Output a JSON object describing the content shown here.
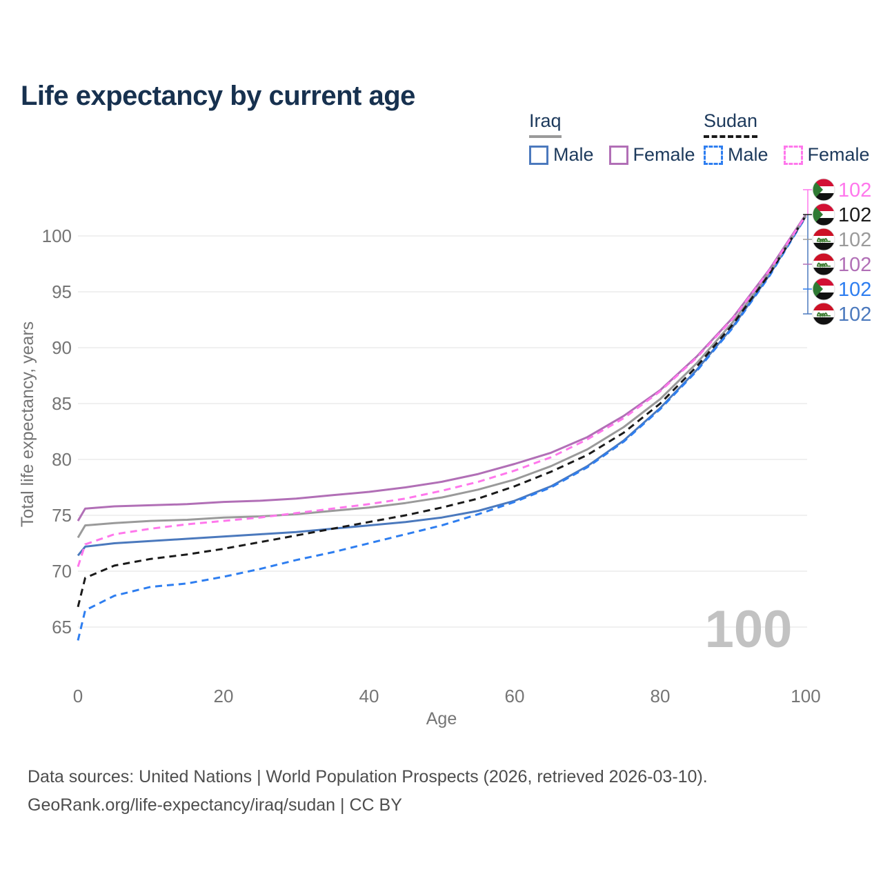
{
  "title": "Life expectancy by current age",
  "watermark": "100",
  "legend": {
    "groups": [
      {
        "country": "Iraq",
        "line_style": "solid",
        "underline_color": "#9a9a9a",
        "items": [
          {
            "label": "Male",
            "color": "#4b79bd",
            "dashed": false
          },
          {
            "label": "Female",
            "color": "#b16fb6",
            "dashed": false
          }
        ]
      },
      {
        "country": "Sudan",
        "line_style": "dashed",
        "underline_color": "#1a1a1a",
        "items": [
          {
            "label": "Male",
            "color": "#2e7ef0",
            "dashed": true
          },
          {
            "label": "Female",
            "color": "#ff77ec",
            "dashed": true
          }
        ]
      }
    ]
  },
  "chart_data": {
    "type": "line",
    "title": "Life expectancy by current age",
    "xlabel": "Age",
    "ylabel": "Total life expectancy, years",
    "xlim": [
      0,
      100
    ],
    "ylim": [
      63,
      103
    ],
    "xticks": [
      0,
      20,
      40,
      60,
      80,
      100
    ],
    "yticks": [
      65,
      70,
      75,
      80,
      85,
      90,
      95,
      100
    ],
    "grid": "horizontal",
    "grid_color": "#ececec",
    "x": [
      0,
      1,
      5,
      10,
      15,
      20,
      25,
      30,
      35,
      40,
      45,
      50,
      55,
      60,
      65,
      70,
      75,
      80,
      85,
      90,
      95,
      100
    ],
    "series": [
      {
        "name": "Sudan Female",
        "country": "sudan",
        "sex": "Female",
        "color": "#ff77ec",
        "dashed": true,
        "end_label": "102",
        "values": [
          70.4,
          72.4,
          73.3,
          73.8,
          74.2,
          74.5,
          74.8,
          75.2,
          75.6,
          76.0,
          76.5,
          77.2,
          78.0,
          79.0,
          80.2,
          81.8,
          83.7,
          86.1,
          89.1,
          92.6,
          96.9,
          101.8
        ]
      },
      {
        "name": "Sudan",
        "country": "sudan",
        "sex": "Both",
        "color": "#1a1a1a",
        "dashed": true,
        "end_label": "102",
        "values": [
          66.8,
          69.4,
          70.5,
          71.1,
          71.5,
          72.0,
          72.6,
          73.2,
          73.8,
          74.4,
          75.0,
          75.7,
          76.5,
          77.6,
          78.9,
          80.4,
          82.4,
          85.0,
          88.3,
          92.1,
          96.6,
          101.8
        ]
      },
      {
        "name": "Iraq",
        "country": "iraq",
        "sex": "Both",
        "color": "#9a9a9a",
        "dashed": false,
        "end_label": "102",
        "values": [
          73.0,
          74.1,
          74.3,
          74.5,
          74.6,
          74.8,
          74.9,
          75.1,
          75.4,
          75.7,
          76.1,
          76.6,
          77.3,
          78.2,
          79.4,
          80.9,
          82.9,
          85.4,
          88.6,
          92.3,
          96.7,
          101.8
        ]
      },
      {
        "name": "Iraq Female",
        "country": "iraq",
        "sex": "Female",
        "color": "#b16fb6",
        "dashed": false,
        "end_label": "102",
        "values": [
          74.5,
          75.6,
          75.8,
          75.9,
          76.0,
          76.2,
          76.3,
          76.5,
          76.8,
          77.1,
          77.5,
          78.0,
          78.7,
          79.6,
          80.6,
          82.0,
          83.9,
          86.2,
          89.2,
          92.7,
          97.0,
          101.9
        ]
      },
      {
        "name": "Sudan Male",
        "country": "sudan",
        "sex": "Male",
        "color": "#2e7ef0",
        "dashed": true,
        "end_label": "102",
        "values": [
          63.8,
          66.5,
          67.8,
          68.6,
          68.9,
          69.5,
          70.2,
          71.0,
          71.7,
          72.5,
          73.3,
          74.1,
          75.1,
          76.2,
          77.5,
          79.3,
          81.6,
          84.5,
          87.9,
          91.8,
          96.4,
          101.7
        ]
      },
      {
        "name": "Iraq Male",
        "country": "iraq",
        "sex": "Male",
        "color": "#4b79bd",
        "dashed": false,
        "end_label": "102",
        "values": [
          71.4,
          72.2,
          72.5,
          72.7,
          72.9,
          73.1,
          73.3,
          73.5,
          73.8,
          74.1,
          74.4,
          74.8,
          75.4,
          76.3,
          77.6,
          79.4,
          81.7,
          84.6,
          88.0,
          91.9,
          96.5,
          101.75
        ]
      }
    ],
    "legend_position": "top-right",
    "flag_colors": {
      "sudan": {
        "red": "#d21034",
        "white": "#ffffff",
        "black": "#111111",
        "green": "#2f7a33"
      },
      "iraq": {
        "red": "#cd1126",
        "white": "#ffffff",
        "black": "#111111",
        "green": "#3f7d33"
      }
    }
  },
  "footer": {
    "line1": "Data sources: United Nations | World Population Prospects (2026, retrieved 2026-03-10).",
    "line2": "GeoRank.org/life-expectancy/iraq/sudan | CC BY"
  }
}
